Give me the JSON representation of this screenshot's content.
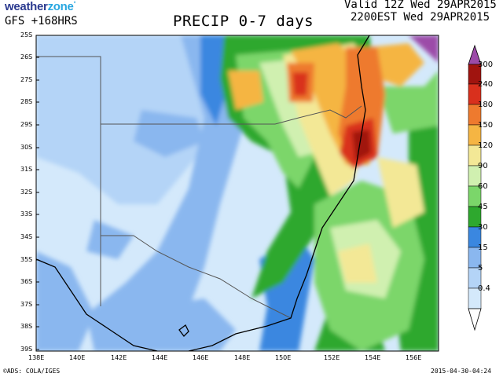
{
  "header": {
    "brand_a": "weather",
    "brand_b": "zone",
    "model_run": "GFS +168HRS",
    "title": "PRECIP 0-7 days",
    "valid": "Valid 12Z Wed 29APR2015",
    "local": "2200EST Wed 29APR2015"
  },
  "footer": {
    "credit": "©ADS: COLA/IGES",
    "stamp": "2015-04-30-04:24"
  },
  "map": {
    "lat_labels": [
      "25S",
      "26S",
      "27S",
      "28S",
      "29S",
      "30S",
      "31S",
      "32S",
      "33S",
      "34S",
      "35S",
      "36S",
      "37S",
      "38S",
      "39S"
    ],
    "lon_labels": [
      "138E",
      "140E",
      "142E",
      "144E",
      "146E",
      "148E",
      "150E",
      "152E",
      "154E",
      "156E"
    ]
  },
  "colorbar": {
    "levels": [
      "0.4",
      "5",
      "15",
      "30",
      "45",
      "60",
      "90",
      "120",
      "150",
      "180",
      "240",
      "300"
    ],
    "colors": [
      "#d4e9fb",
      "#b4d4f7",
      "#8ab7ef",
      "#3a87e0",
      "#2ea82e",
      "#7bd66a",
      "#d0f0b0",
      "#f3e896",
      "#f5b543",
      "#ee7a2e",
      "#d9301d",
      "#a0140f",
      "#9c4ba8"
    ]
  }
}
